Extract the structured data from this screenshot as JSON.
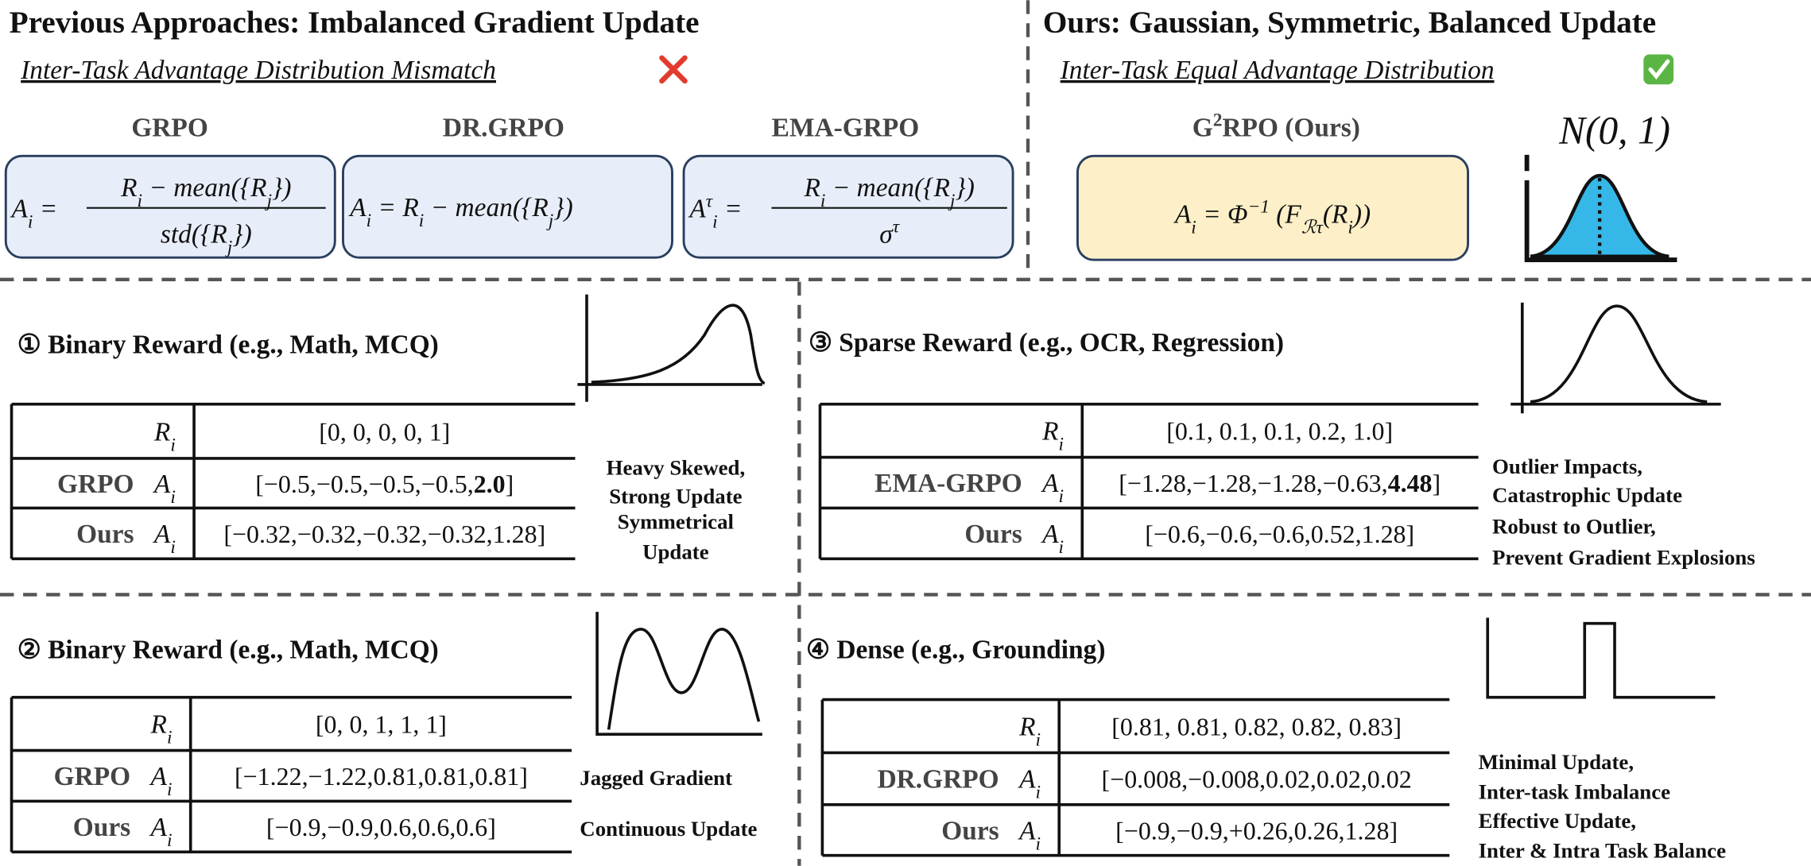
{
  "left": {
    "title": "Previous Approaches: Imbalanced Gradient Update",
    "subtitle": "Inter-Task Advantage Distribution Mismatch"
  },
  "right": {
    "title": "Ours: Gaussian, Symmetric, Balanced Update",
    "subtitle": "Inter-Task Equal Advantage Distribution",
    "method": [
      {
        "text": "G"
      },
      {
        "text": "2",
        "sup": true
      },
      {
        "text": "RPO (Ours)"
      }
    ],
    "formula": [
      {
        "text": "A"
      },
      {
        "text": "i",
        "sub": true
      },
      {
        "text": " = Φ"
      },
      {
        "text": "−1",
        "sup": true
      },
      {
        "text": " (F"
      },
      {
        "text": "ℛτ",
        "sub": true
      },
      {
        "text": "(R"
      },
      {
        "text": "i",
        "sub": true
      },
      {
        "text": "))"
      }
    ],
    "distribution": "N(0, 1)"
  },
  "methods": [
    {
      "name": "GRPO",
      "formula": {
        "lhs": [
          {
            "text": "A"
          },
          {
            "text": "i",
            "sub": true
          },
          {
            "text": " ="
          }
        ],
        "numerator": [
          {
            "text": "R"
          },
          {
            "text": "i",
            "sub": true
          },
          {
            "text": " − mean({R"
          },
          {
            "text": "j",
            "sub": true
          },
          {
            "text": "})"
          }
        ],
        "denominator": [
          {
            "text": "std({R"
          },
          {
            "text": "j",
            "sub": true
          },
          {
            "text": "})"
          }
        ]
      }
    },
    {
      "name": "DR.GRPO",
      "formula": {
        "inline": [
          {
            "text": "A"
          },
          {
            "text": "i",
            "sub": true
          },
          {
            "text": " = R"
          },
          {
            "text": "i",
            "sub": true
          },
          {
            "text": " − mean({R"
          },
          {
            "text": "j",
            "sub": true
          },
          {
            "text": "})"
          }
        ]
      }
    },
    {
      "name": "EMA-GRPO",
      "formula": {
        "lhs": [
          {
            "text": "A"
          },
          {
            "text": "τ",
            "sup": true
          },
          {
            "text": "i",
            "sub": true
          },
          {
            "text": " ="
          }
        ],
        "numerator": [
          {
            "text": "R"
          },
          {
            "text": "i",
            "sub": true
          },
          {
            "text": " − mean({R"
          },
          {
            "text": "j",
            "sub": true
          },
          {
            "text": "})"
          }
        ],
        "denominator": [
          {
            "text": "σ"
          },
          {
            "text": "τ",
            "sup": true
          }
        ]
      }
    }
  ],
  "panels": [
    {
      "title": "① Binary Reward (e.g., Math,  MCQ)",
      "rows": [
        {
          "symbol": [
            {
              "text": "R"
            },
            {
              "text": "i",
              "sub": true
            }
          ],
          "value": [
            {
              "text": "[0, 0, 0, 0, 1]"
            }
          ]
        },
        {
          "label": "GRPO",
          "symbol": [
            {
              "text": "A"
            },
            {
              "text": "i",
              "sub": true
            }
          ],
          "value": [
            {
              "text": "[−0.5,−0.5,−0.5,−0.5,"
            },
            {
              "text": "2.0",
              "bold": true
            },
            {
              "text": "]"
            }
          ]
        },
        {
          "label": "Ours",
          "symbol": [
            {
              "text": "A"
            },
            {
              "text": "i",
              "sub": true
            }
          ],
          "value": [
            {
              "text": "[−0.32,−0.32,−0.32,−0.32,1.28]"
            }
          ]
        }
      ],
      "notes": [
        {
          "text": "Heavy Skewed,",
          "color": "#3f7a1f"
        },
        {
          "text": "Strong Update",
          "color": "#3f7a1f"
        },
        {
          "text": "Symmetrical",
          "color": "#c56a12"
        },
        {
          "text": "Update",
          "color": "#c56a12"
        }
      ]
    },
    {
      "title": "③ Sparse Reward (e.g., OCR, Regression)",
      "rows": [
        {
          "symbol": [
            {
              "text": "R"
            },
            {
              "text": "i",
              "sub": true
            }
          ],
          "value": [
            {
              "text": "[0.1, 0.1, 0.1, 0.2, 1.0]"
            }
          ]
        },
        {
          "label": "EMA-GRPO",
          "symbol": [
            {
              "text": "A"
            },
            {
              "text": "i",
              "sub": true
            }
          ],
          "value": [
            {
              "text": "[−1.28,−1.28,−1.28,−0.63,"
            },
            {
              "text": "4.48",
              "bold": true
            },
            {
              "text": "]"
            }
          ]
        },
        {
          "label": "Ours",
          "symbol": [
            {
              "text": "A"
            },
            {
              "text": "i",
              "sub": true
            }
          ],
          "value": [
            {
              "text": "[−0.6,−0.6,−0.6,0.52,1.28]"
            }
          ]
        }
      ],
      "notes": [
        {
          "text": "Outlier Impacts,",
          "color": "#3f7a1f"
        },
        {
          "text": "Catastrophic Update",
          "color": "#3f7a1f"
        },
        {
          "text": "Robust to Outlier,",
          "color": "#c56a12"
        },
        {
          "text": "Prevent Gradient Explosions",
          "color": "#c56a12"
        }
      ]
    },
    {
      "title": "②  Binary Reward (e.g., Math,  MCQ)",
      "rows": [
        {
          "symbol": [
            {
              "text": "R"
            },
            {
              "text": "i",
              "sub": true
            }
          ],
          "value": [
            {
              "text": "[0, 0, 1, 1, 1]"
            }
          ]
        },
        {
          "label": "GRPO",
          "symbol": [
            {
              "text": "A"
            },
            {
              "text": "i",
              "sub": true
            }
          ],
          "value": [
            {
              "text": "[−1.22,−1.22,0.81,0.81,0.81]"
            }
          ]
        },
        {
          "label": "Ours",
          "symbol": [
            {
              "text": "A"
            },
            {
              "text": "i",
              "sub": true
            }
          ],
          "value": [
            {
              "text": "[−0.9,−0.9,0.6,0.6,0.6]"
            }
          ]
        }
      ],
      "notes": [
        {
          "text": "Jagged Gradient",
          "color": "#3f7a1f"
        },
        {
          "text": "Continuous  Update",
          "color": "#c56a12"
        }
      ]
    },
    {
      "title": "④ Dense  (e.g., Grounding)",
      "rows": [
        {
          "symbol": [
            {
              "text": "R"
            },
            {
              "text": "i",
              "sub": true
            }
          ],
          "value": [
            {
              "text": "[0.81, 0.81, 0.82, 0.82, 0.83]"
            }
          ]
        },
        {
          "label": "DR.GRPO",
          "symbol": [
            {
              "text": "A"
            },
            {
              "text": "i",
              "sub": true
            }
          ],
          "value": [
            {
              "text": "[−0.008,−0.008,0.02,0.02,0.02"
            }
          ]
        },
        {
          "label": "Ours",
          "symbol": [
            {
              "text": "A"
            },
            {
              "text": "i",
              "sub": true
            }
          ],
          "value": [
            {
              "text": "[−0.9,−0.9,+0.26,0.26,1.28]"
            }
          ]
        }
      ],
      "notes": [
        {
          "text": "Minimal Update,",
          "color": "#3f7a1f"
        },
        {
          "text": "Inter-task Imbalance",
          "color": "#3f7a1f"
        },
        {
          "text": "Effective Update,",
          "color": "#c56a12"
        },
        {
          "text": "Inter & Intra Task Balance",
          "color": "#c56a12"
        }
      ]
    }
  ]
}
